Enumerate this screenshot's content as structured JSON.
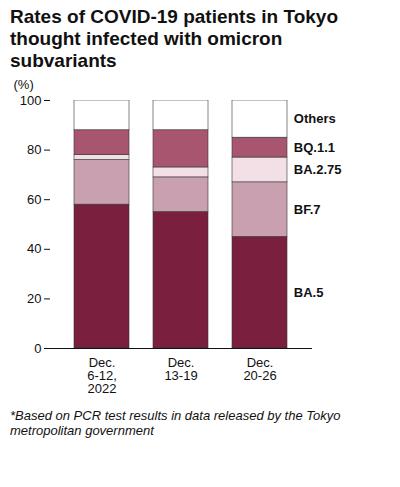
{
  "chart_data": {
    "type": "bar",
    "stacked": true,
    "title": "Rates of COVID-19 patients in Tokyo thought infected with omicron subvariants",
    "y_label": "(%)",
    "caption": "*Based on PCR test results in data released by the Tokyo metropolitan government",
    "categories": [
      "Dec.\n6-12,\n2022",
      "Dec.\n13-19",
      "Dec.\n20-26"
    ],
    "series": [
      {
        "name": "BA.5",
        "color": "#7a1f3d",
        "values": [
          58,
          55,
          45
        ]
      },
      {
        "name": "BF.7",
        "color": "#c9a0b0",
        "values": [
          18,
          14,
          22
        ]
      },
      {
        "name": "BA.2.75",
        "color": "#f2e0e6",
        "values": [
          2,
          4,
          10
        ]
      },
      {
        "name": "BQ.1.1",
        "color": "#a8566f",
        "values": [
          10,
          15,
          8
        ]
      },
      {
        "name": "Others",
        "color": "#ffffff",
        "values": [
          12,
          12,
          15
        ]
      }
    ],
    "ylim": [
      0,
      100
    ],
    "yticks": [
      0,
      20,
      40,
      60,
      80,
      100
    ],
    "legend": "right"
  }
}
